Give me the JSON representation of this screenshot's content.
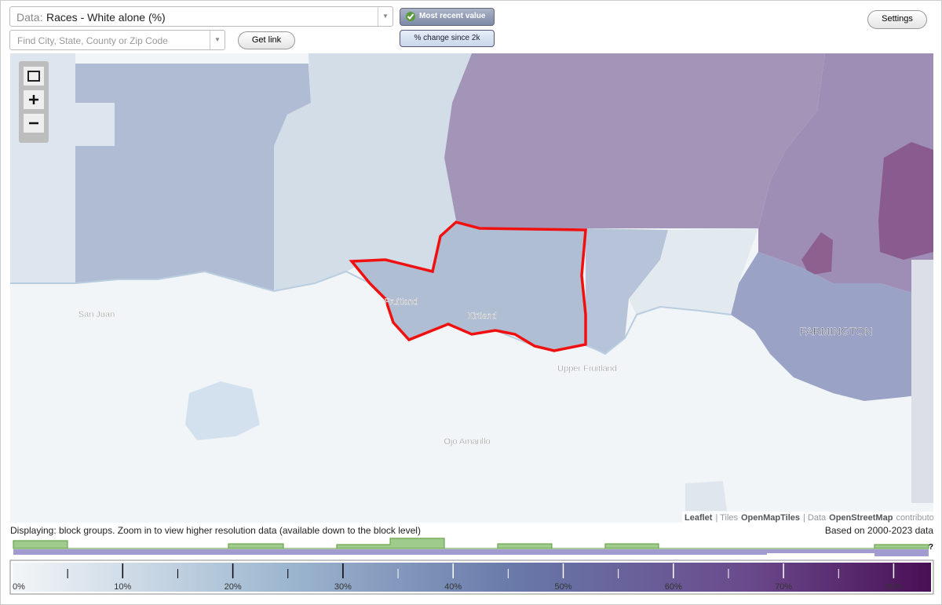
{
  "toolbar": {
    "data_label": "Data:",
    "dataset": "Races - White alone (%)",
    "search_placeholder": "Find City, State, County or Zip Code",
    "get_link": "Get link",
    "most_recent": "Most recent value",
    "change_since": "% change since 2k",
    "settings": "Settings"
  },
  "map": {
    "labels": [
      "San Juan",
      "Fruitland",
      "Kirtland",
      "Upper Fruitland",
      "Ojo Amarillo",
      "FARMINGTON"
    ],
    "attribution": {
      "leaflet": "Leaflet",
      "tiles_prefix": "| Tiles",
      "tiles": "OpenMapTiles",
      "data_prefix": "| Data",
      "data": "OpenStreetMap",
      "suffix": "contributors"
    }
  },
  "footer": {
    "displaying": "Displaying: block groups. Zoom in to view higher resolution data (available down to the block level)",
    "based_on": "Based on 2000-2023 data",
    "help": "?"
  },
  "legend": {
    "labels": [
      "0%",
      "10%",
      "20%",
      "30%",
      "40%",
      "50%",
      "60%",
      "70%",
      "80%"
    ]
  }
}
